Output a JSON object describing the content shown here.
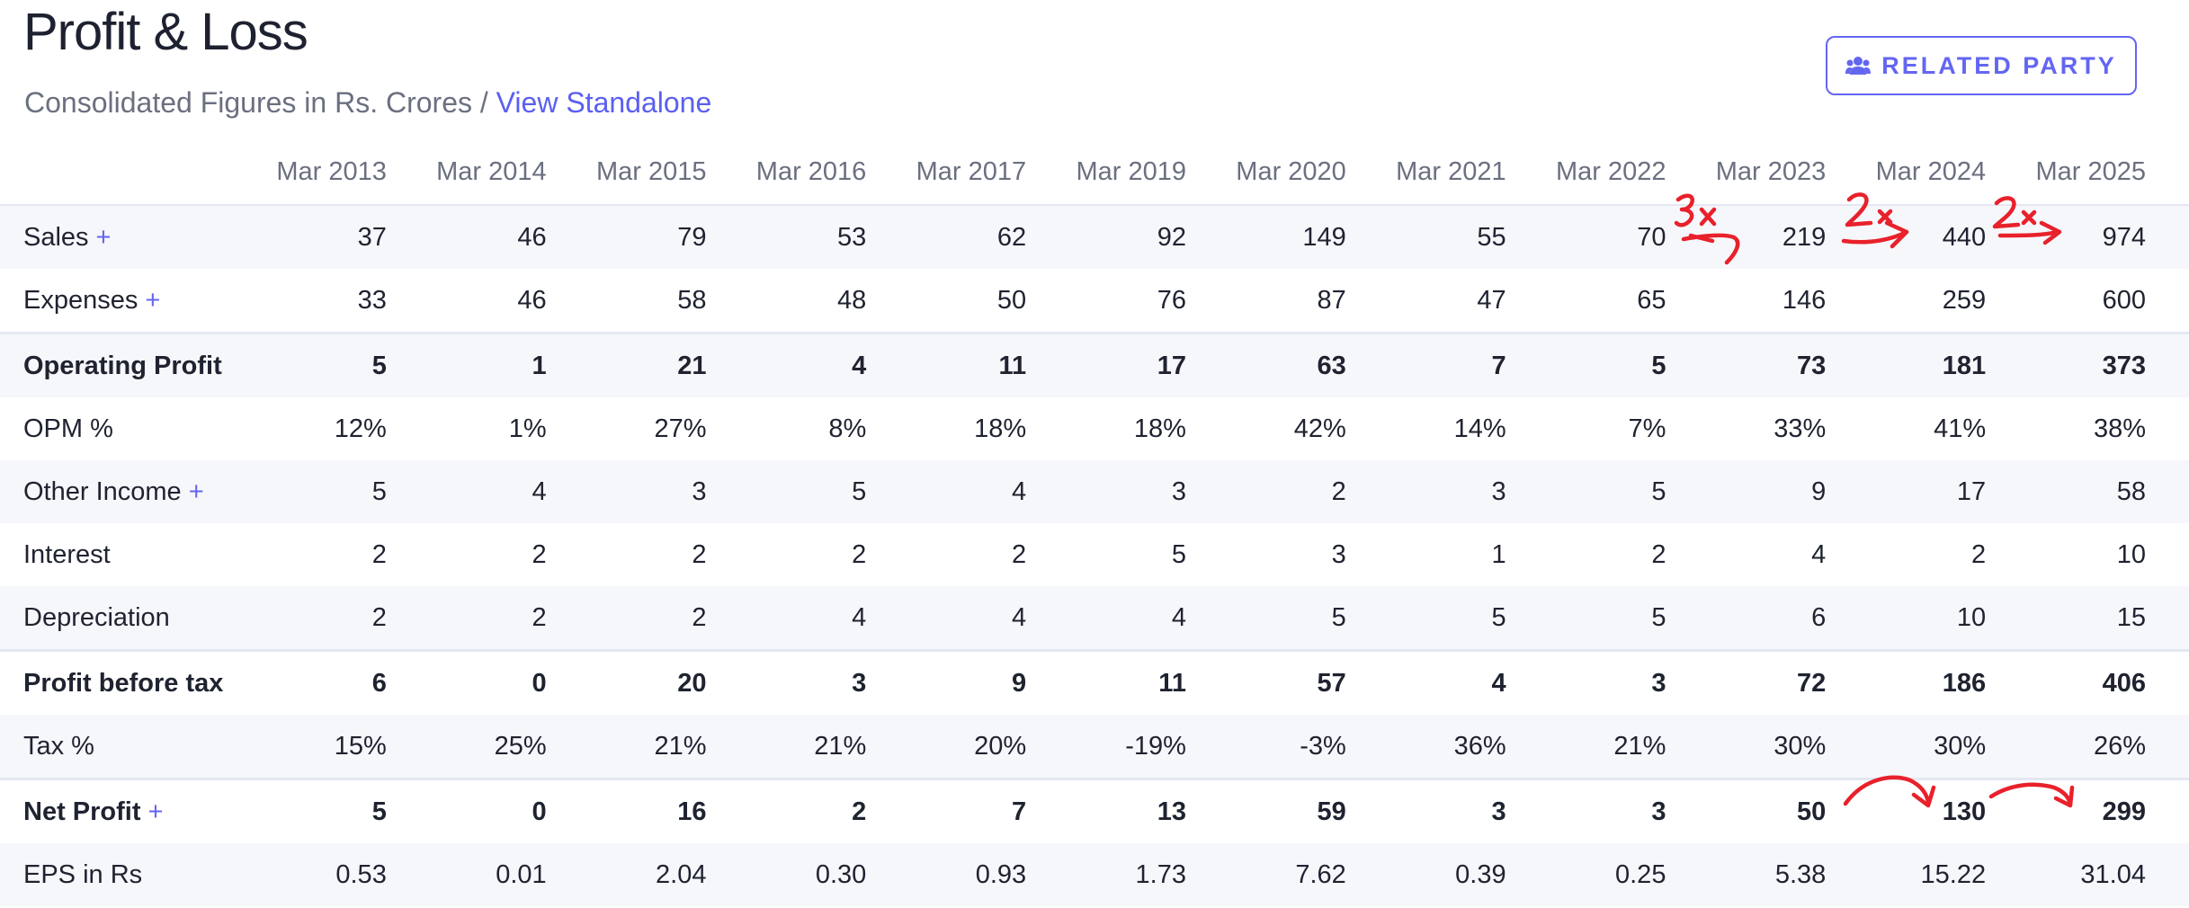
{
  "header": {
    "title": "Profit & Loss",
    "subtitle": "Consolidated Figures in Rs. Crores /",
    "standalone_link": "View Standalone",
    "related_party_label": "RELATED PARTY"
  },
  "table": {
    "columns": [
      "Mar 2013",
      "Mar 2014",
      "Mar 2015",
      "Mar 2016",
      "Mar 2017",
      "Mar 2019",
      "Mar 2020",
      "Mar 2021",
      "Mar 2022",
      "Mar 2023",
      "Mar 2024",
      "Mar 2025"
    ],
    "rows": [
      {
        "label": "Sales",
        "plus": "+",
        "values": [
          "37",
          "46",
          "79",
          "53",
          "62",
          "92",
          "149",
          "55",
          "70",
          "219",
          "440",
          "974"
        ]
      },
      {
        "label": "Expenses",
        "plus": "+",
        "values": [
          "33",
          "46",
          "58",
          "48",
          "50",
          "76",
          "87",
          "47",
          "65",
          "146",
          "259",
          "600"
        ]
      },
      {
        "label": "Operating Profit",
        "plus": "",
        "values": [
          "5",
          "1",
          "21",
          "4",
          "11",
          "17",
          "63",
          "7",
          "5",
          "73",
          "181",
          "373"
        ]
      },
      {
        "label": "OPM %",
        "plus": "",
        "values": [
          "12%",
          "1%",
          "27%",
          "8%",
          "18%",
          "18%",
          "42%",
          "14%",
          "7%",
          "33%",
          "41%",
          "38%"
        ]
      },
      {
        "label": "Other Income",
        "plus": "+",
        "values": [
          "5",
          "4",
          "3",
          "5",
          "4",
          "3",
          "2",
          "3",
          "5",
          "9",
          "17",
          "58"
        ]
      },
      {
        "label": "Interest",
        "plus": "",
        "values": [
          "2",
          "2",
          "2",
          "2",
          "2",
          "5",
          "3",
          "1",
          "2",
          "4",
          "2",
          "10"
        ]
      },
      {
        "label": "Depreciation",
        "plus": "",
        "values": [
          "2",
          "2",
          "2",
          "4",
          "4",
          "4",
          "5",
          "5",
          "5",
          "6",
          "10",
          "15"
        ]
      },
      {
        "label": "Profit before tax",
        "plus": "",
        "values": [
          "6",
          "0",
          "20",
          "3",
          "9",
          "11",
          "57",
          "4",
          "3",
          "72",
          "186",
          "406"
        ]
      },
      {
        "label": "Tax %",
        "plus": "",
        "values": [
          "15%",
          "25%",
          "21%",
          "21%",
          "20%",
          "-19%",
          "-3%",
          "36%",
          "21%",
          "30%",
          "30%",
          "26%"
        ]
      },
      {
        "label": "Net Profit",
        "plus": "+",
        "values": [
          "5",
          "0",
          "16",
          "2",
          "7",
          "13",
          "59",
          "3",
          "3",
          "50",
          "130",
          "299"
        ]
      },
      {
        "label": "EPS in Rs",
        "plus": "",
        "values": [
          "0.53",
          "0.01",
          "2.04",
          "0.30",
          "0.93",
          "1.73",
          "7.62",
          "0.39",
          "0.25",
          "5.38",
          "15.22",
          "31.04"
        ]
      }
    ]
  },
  "annotations": {
    "color": "#e8212b",
    "notes": [
      "3x",
      "2x",
      "2x"
    ]
  },
  "colors": {
    "accent": "#6366f1",
    "stripe": "#f6f7fb",
    "border": "#e4e8f2"
  }
}
